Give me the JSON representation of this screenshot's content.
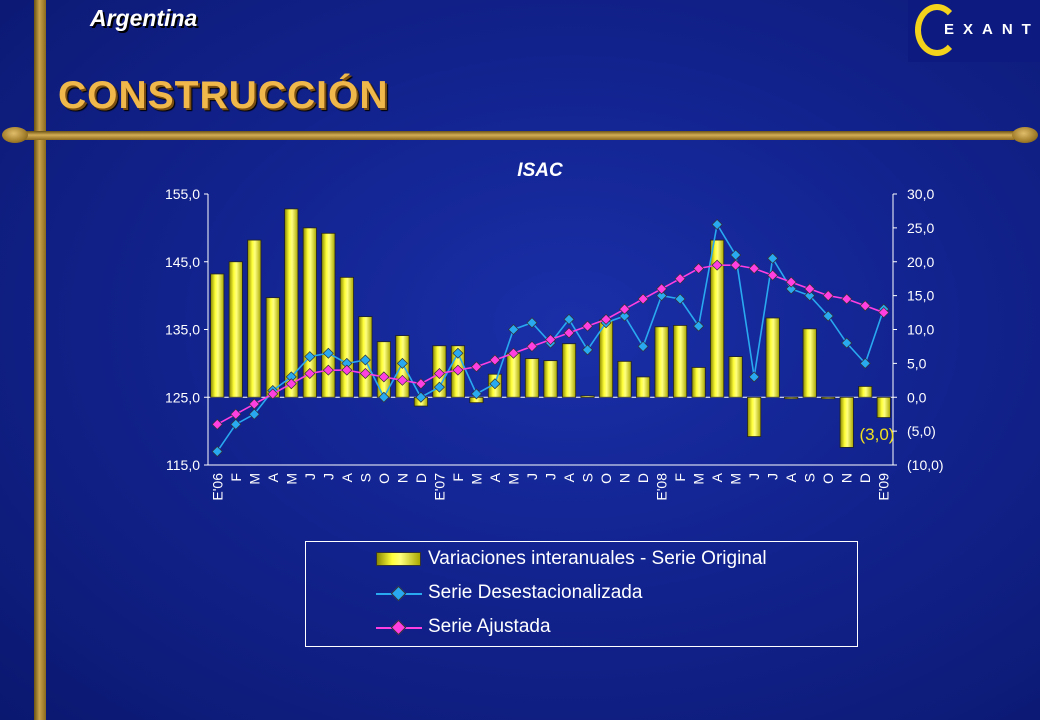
{
  "header": {
    "country": "Argentina",
    "title": "CONSTRUCCIÓN",
    "logo_text": "EXANTE"
  },
  "colors": {
    "bars": "#f5f02a",
    "desestacionalizada": "#29a9f0",
    "ajustada": "#ff3fe0",
    "background": "#12238f",
    "gold": "#c9a24a"
  },
  "chart_data": {
    "type": "bar+line",
    "title": "ISAC",
    "categories": [
      "E'06",
      "F",
      "M",
      "A",
      "M",
      "J",
      "J",
      "A",
      "S",
      "O",
      "N",
      "D",
      "E'07",
      "F",
      "M",
      "A",
      "M",
      "J",
      "J",
      "A",
      "S",
      "O",
      "N",
      "D",
      "E'08",
      "F",
      "M",
      "A",
      "M",
      "J",
      "J",
      "A",
      "S",
      "O",
      "N",
      "D",
      "E'09"
    ],
    "left_axis": {
      "ylim": [
        115,
        155
      ],
      "ticks": [
        "155,0",
        "145,0",
        "135,0",
        "125,0",
        "115,0"
      ]
    },
    "right_axis": {
      "ylim": [
        -10,
        30
      ],
      "ticks": [
        "30,0",
        "25,0",
        "20,0",
        "15,0",
        "10,0",
        "5,0",
        "0,0",
        "(5,0)",
        "(10,0)"
      ]
    },
    "series": [
      {
        "name": "Variaciones interanuales - Serie Original",
        "axis": "right",
        "values": [
          18.2,
          20.0,
          23.2,
          14.7,
          27.8,
          25.0,
          24.2,
          17.7,
          11.9,
          8.2,
          9.1,
          -1.3,
          7.6,
          7.6,
          -0.8,
          3.4,
          6.5,
          5.7,
          5.4,
          7.9,
          0.2,
          11.4,
          5.3,
          3.0,
          10.4,
          10.6,
          4.4,
          23.2,
          6.0,
          -5.8,
          11.7,
          0.0,
          10.1,
          0.0,
          -7.4,
          1.6,
          -3.0
        ]
      },
      {
        "name": "Serie Desestacionalizada",
        "axis": "left",
        "values": [
          117.0,
          121.0,
          122.5,
          126.0,
          128.0,
          131.0,
          131.5,
          130.0,
          130.5,
          125.0,
          130.0,
          125.0,
          126.5,
          131.5,
          125.5,
          127.0,
          135.0,
          136.0,
          133.0,
          136.5,
          132.0,
          136.0,
          137.0,
          132.5,
          140.0,
          139.5,
          135.5,
          150.5,
          146.0,
          128.0,
          145.5,
          141.0,
          140.0,
          137.0,
          133.0,
          130.0,
          138.0
        ]
      },
      {
        "name": "Serie Ajustada",
        "axis": "left",
        "values": [
          121.0,
          122.5,
          124.0,
          125.5,
          127.0,
          128.5,
          129.0,
          129.0,
          128.5,
          128.0,
          127.5,
          127.0,
          128.5,
          129.0,
          129.5,
          130.5,
          131.5,
          132.5,
          133.5,
          134.5,
          135.5,
          136.5,
          138.0,
          139.5,
          141.0,
          142.5,
          144.0,
          144.5,
          144.5,
          144.0,
          143.0,
          142.0,
          141.0,
          140.0,
          139.5,
          138.5,
          137.5
        ]
      }
    ],
    "annotation": "(3,0)",
    "legend_position": "bottom"
  }
}
